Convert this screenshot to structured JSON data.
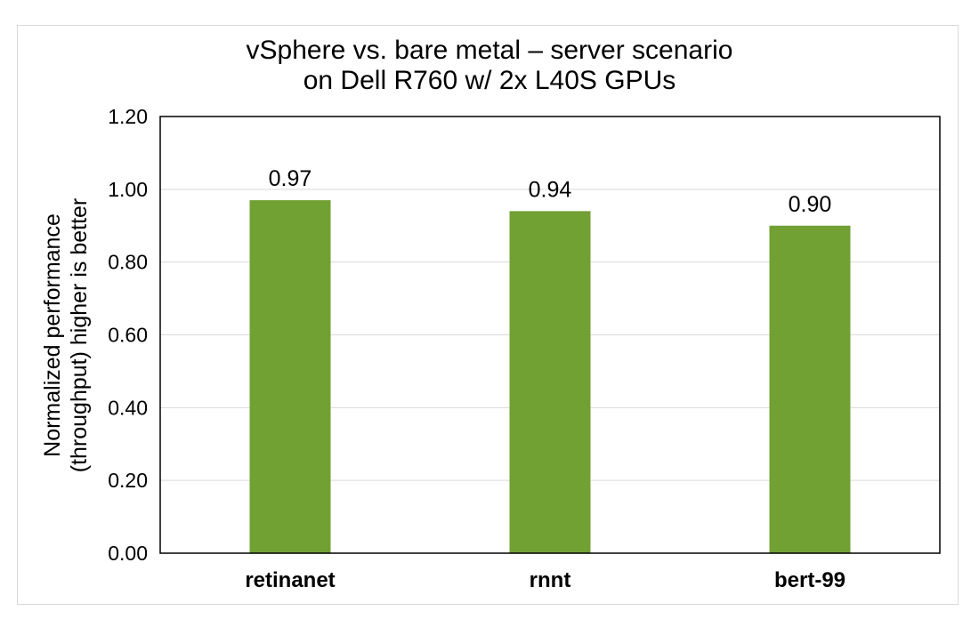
{
  "chart_data": {
    "type": "bar",
    "title_line1": "vSphere vs. bare metal – server scenario",
    "title_line2": "on Dell R760 w/ 2x L40S GPUs",
    "ylabel_line1": "Normalized performance",
    "ylabel_line2": "(throughput) higher is better",
    "xlabel": "",
    "categories": [
      "retinanet",
      "rnnt",
      "bert-99"
    ],
    "values": [
      0.97,
      0.94,
      0.9
    ],
    "data_labels": [
      "0.97",
      "0.94",
      "0.90"
    ],
    "ylim": [
      0,
      1.2
    ],
    "yticks": [
      "0.00",
      "0.20",
      "0.40",
      "0.60",
      "0.80",
      "1.00",
      "1.20"
    ],
    "grid": true,
    "bar_color": "#71a033",
    "grid_color": "#d9d9d9"
  }
}
